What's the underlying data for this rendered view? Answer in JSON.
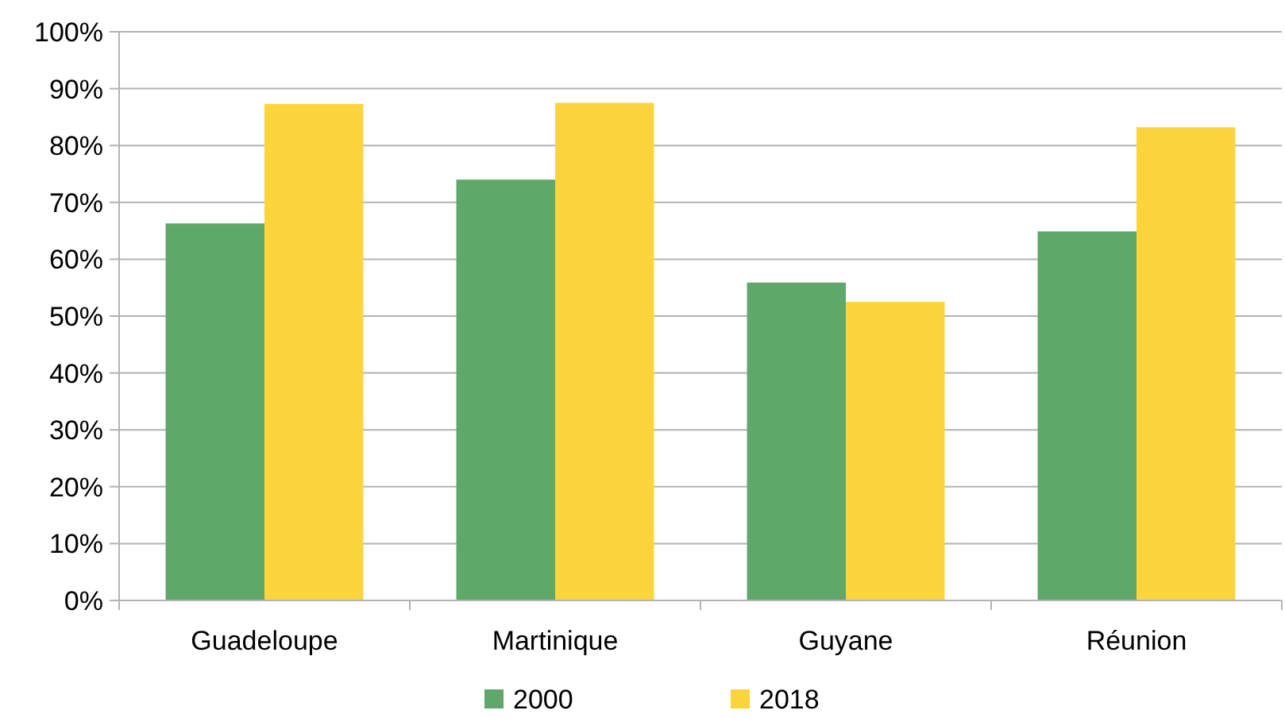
{
  "chart_data": {
    "type": "bar",
    "categories": [
      "Guadeloupe",
      "Martinique",
      "Guyane",
      "Réunion"
    ],
    "series": [
      {
        "name": "2000",
        "color": "#5fa86a",
        "values": [
          66.3,
          74,
          55.9,
          64.9
        ]
      },
      {
        "name": "2018",
        "color": "#fcd43c",
        "values": [
          87.3,
          87.5,
          52.5,
          83.2
        ]
      }
    ],
    "ylim": [
      0,
      100
    ],
    "yticks": [
      {
        "value": 0,
        "label": "0%"
      },
      {
        "value": 10,
        "label": "10%"
      },
      {
        "value": 20,
        "label": "20%"
      },
      {
        "value": 30,
        "label": "30%"
      },
      {
        "value": 40,
        "label": "40%"
      },
      {
        "value": 50,
        "label": "50%"
      },
      {
        "value": 60,
        "label": "60%"
      },
      {
        "value": 70,
        "label": "70%"
      },
      {
        "value": 80,
        "label": "80%"
      },
      {
        "value": 90,
        "label": "90%"
      },
      {
        "value": 100,
        "label": "100%"
      }
    ],
    "grid": "y",
    "legend": "bottom"
  }
}
